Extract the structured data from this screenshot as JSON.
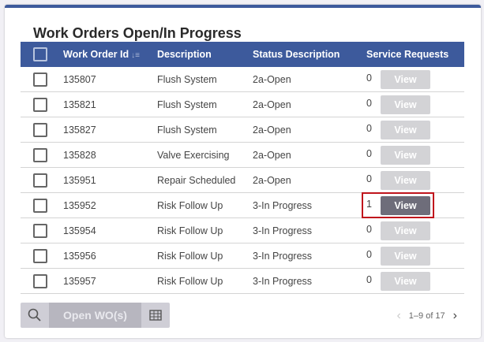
{
  "title": "Work Orders Open/In Progress",
  "columns": [
    "Work Order Id",
    "Description",
    "Status Description",
    "Service Requests"
  ],
  "rows": [
    {
      "id": "135807",
      "desc": "Flush System",
      "status": "2a-Open",
      "count": "0",
      "view": "View"
    },
    {
      "id": "135821",
      "desc": "Flush System",
      "status": "2a-Open",
      "count": "0",
      "view": "View"
    },
    {
      "id": "135827",
      "desc": "Flush System",
      "status": "2a-Open",
      "count": "0",
      "view": "View"
    },
    {
      "id": "135828",
      "desc": "Valve Exercising",
      "status": "2a-Open",
      "count": "0",
      "view": "View"
    },
    {
      "id": "135951",
      "desc": "Repair Scheduled",
      "status": "2a-Open",
      "count": "0",
      "view": "View"
    },
    {
      "id": "135952",
      "desc": "Risk Follow Up",
      "status": "3-In Progress",
      "count": "1",
      "view": "View",
      "active": true
    },
    {
      "id": "135954",
      "desc": "Risk Follow Up",
      "status": "3-In Progress",
      "count": "0",
      "view": "View"
    },
    {
      "id": "135956",
      "desc": "Risk Follow Up",
      "status": "3-In Progress",
      "count": "0",
      "view": "View"
    },
    {
      "id": "135957",
      "desc": "Risk Follow Up",
      "status": "3-In Progress",
      "count": "0",
      "view": "View"
    }
  ],
  "footer": {
    "open_label": "Open WO(s)",
    "pagination": "1–9 of 17"
  },
  "colors": {
    "header": "#3d5a9c",
    "active_view": "#6e6d7a",
    "highlight": "#c0141c"
  }
}
